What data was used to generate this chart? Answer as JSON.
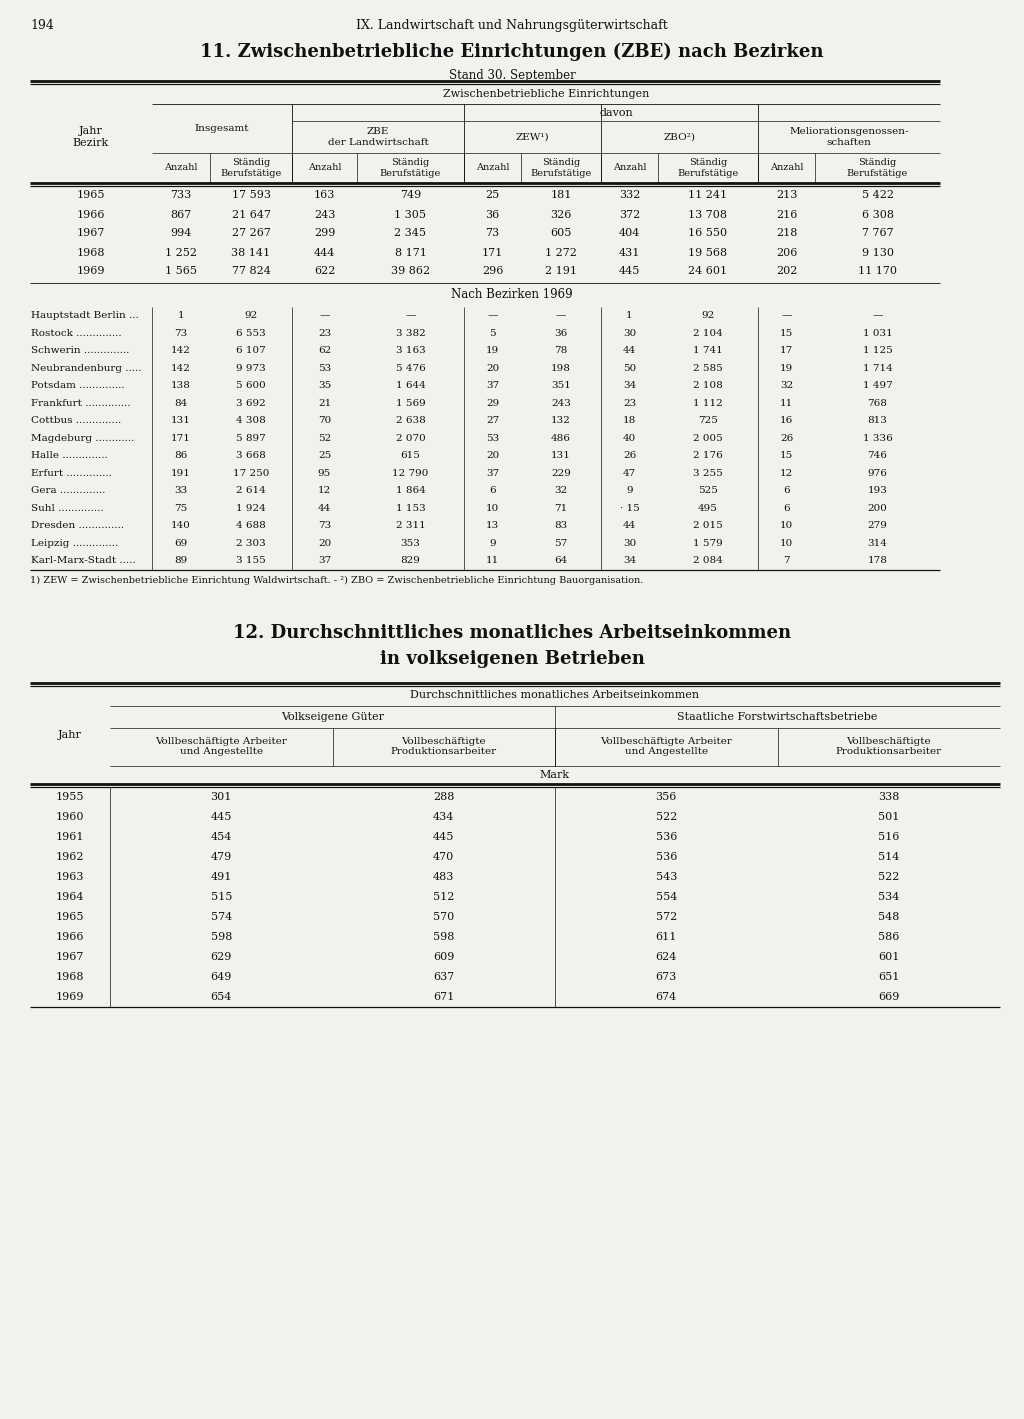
{
  "page_number": "194",
  "header_text": "IX. Landwirtschaft und Nahrungsgüterwirtschaft",
  "table1": {
    "title": "11. Zwischenbetriebliche Einrichtungen (ZBE) nach Bezirken",
    "subtitle": "Stand 30. September",
    "col_header_l1": "Zwischenbetriebliche Einrichtungen",
    "col_header_l2": "davon",
    "group_labels": [
      "Insgesamt",
      "ZBE\nder Landwirtschaft",
      "ZEW¹)",
      "ZBO²)",
      "Meliorationsgenossen-\nschaften"
    ],
    "years_rows": [
      [
        "1965",
        "733",
        "17 593",
        "163",
        "749",
        "25",
        "181",
        "332",
        "11 241",
        "213",
        "5 422"
      ],
      [
        "1966",
        "867",
        "21 647",
        "243",
        "1 305",
        "36",
        "326",
        "372",
        "13 708",
        "216",
        "6 308"
      ],
      [
        "1967",
        "994",
        "27 267",
        "299",
        "2 345",
        "73",
        "605",
        "404",
        "16 550",
        "218",
        "7 767"
      ],
      [
        "1968",
        "1 252",
        "38 141",
        "444",
        "8 171",
        "171",
        "1 272",
        "431",
        "19 568",
        "206",
        "9 130"
      ],
      [
        "1969",
        "1 565",
        "77 824",
        "622",
        "39 862",
        "296",
        "2 191",
        "445",
        "24 601",
        "202",
        "11 170"
      ]
    ],
    "section2_label": "Nach Bezirken 1969",
    "bezirk_rows": [
      [
        "Hauptstadt Berlin ...",
        "1",
        "92",
        "—",
        "—",
        "—",
        "—",
        "1",
        "92",
        "—",
        "—"
      ],
      [
        "Rostock ..............",
        "73",
        "6 553",
        "23",
        "3 382",
        "5",
        "36",
        "30",
        "2 104",
        "15",
        "1 031"
      ],
      [
        "Schwerin ..............",
        "142",
        "6 107",
        "62",
        "3 163",
        "19",
        "78",
        "44",
        "1 741",
        "17",
        "1 125"
      ],
      [
        "Neubrandenburg .....",
        "142",
        "9 973",
        "53",
        "5 476",
        "20",
        "198",
        "50",
        "2 585",
        "19",
        "1 714"
      ],
      [
        "Potsdam ..............",
        "138",
        "5 600",
        "35",
        "1 644",
        "37",
        "351",
        "34",
        "2 108",
        "32",
        "1 497"
      ],
      [
        "Frankfurt ..............",
        "84",
        "3 692",
        "21",
        "1 569",
        "29",
        "243",
        "23",
        "1 112",
        "11",
        "768"
      ],
      [
        "Cottbus ..............",
        "131",
        "4 308",
        "70",
        "2 638",
        "27",
        "132",
        "18",
        "725",
        "16",
        "813"
      ],
      [
        "Magdeburg ............",
        "171",
        "5 897",
        "52",
        "2 070",
        "53",
        "486",
        "40",
        "2 005",
        "26",
        "1 336"
      ],
      [
        "Halle ..............",
        "86",
        "3 668",
        "25",
        "615",
        "20",
        "131",
        "26",
        "2 176",
        "15",
        "746"
      ],
      [
        "Erfurt ..............",
        "191",
        "17 250",
        "95",
        "12 790",
        "37",
        "229",
        "47",
        "3 255",
        "12",
        "976"
      ],
      [
        "Gera ..............",
        "33",
        "2 614",
        "12",
        "1 864",
        "6",
        "32",
        "9",
        "525",
        "6",
        "193"
      ],
      [
        "Suhl ..............",
        "75",
        "1 924",
        "44",
        "1 153",
        "10",
        "71",
        "· 15",
        "495",
        "6",
        "200"
      ],
      [
        "Dresden ..............",
        "140",
        "4 688",
        "73",
        "2 311",
        "13",
        "83",
        "44",
        "2 015",
        "10",
        "279"
      ],
      [
        "Leipzig ..............",
        "69",
        "2 303",
        "20",
        "353",
        "9",
        "57",
        "30",
        "1 579",
        "10",
        "314"
      ],
      [
        "Karl-Marx-Stadt .....",
        "89",
        "3 155",
        "37",
        "829",
        "11",
        "64",
        "34",
        "2 084",
        "7",
        "178"
      ]
    ],
    "footnote": "1) ZEW = Zwischenbetriebliche Einrichtung Waldwirtschaft. - ²) ZBO = Zwischenbetriebliche Einrichtung Bauorganisation."
  },
  "table2": {
    "title1": "12. Durchschnittliches monatliches Arbeitseinkommen",
    "title2": "in volkseigenen Betrieben",
    "col_header_l1": "Durchschnittliches monatliches Arbeitseinkommen",
    "col_groups": [
      "Volkseigene Güter",
      "Staatliche Forstwirtschaftsbetriebe"
    ],
    "col_subheaders": [
      "Vollbeschäftigte Arbeiter\nund Angestellte",
      "Vollbeschäftigte\nProduktionsarbeiter",
      "Vollbeschäftigte Arbeiter\nund Angestellte",
      "Vollbeschäftigte\nProduktionsarbeiter"
    ],
    "unit_label": "Mark",
    "rows": [
      [
        "1955",
        "301",
        "288",
        "356",
        "338"
      ],
      [
        "1960",
        "445",
        "434",
        "522",
        "501"
      ],
      [
        "1961",
        "454",
        "445",
        "536",
        "516"
      ],
      [
        "1962",
        "479",
        "470",
        "536",
        "514"
      ],
      [
        "1963",
        "491",
        "483",
        "543",
        "522"
      ],
      [
        "1964",
        "515",
        "512",
        "554",
        "534"
      ],
      [
        "1965",
        "574",
        "570",
        "572",
        "548"
      ],
      [
        "1966",
        "598",
        "598",
        "611",
        "586"
      ],
      [
        "1967",
        "629",
        "609",
        "624",
        "601"
      ],
      [
        "1968",
        "649",
        "637",
        "673",
        "651"
      ],
      [
        "1969",
        "654",
        "671",
        "674",
        "669"
      ]
    ]
  },
  "bg_color": "#f2f2ed",
  "text_color": "#111111",
  "line_color": "#111111"
}
